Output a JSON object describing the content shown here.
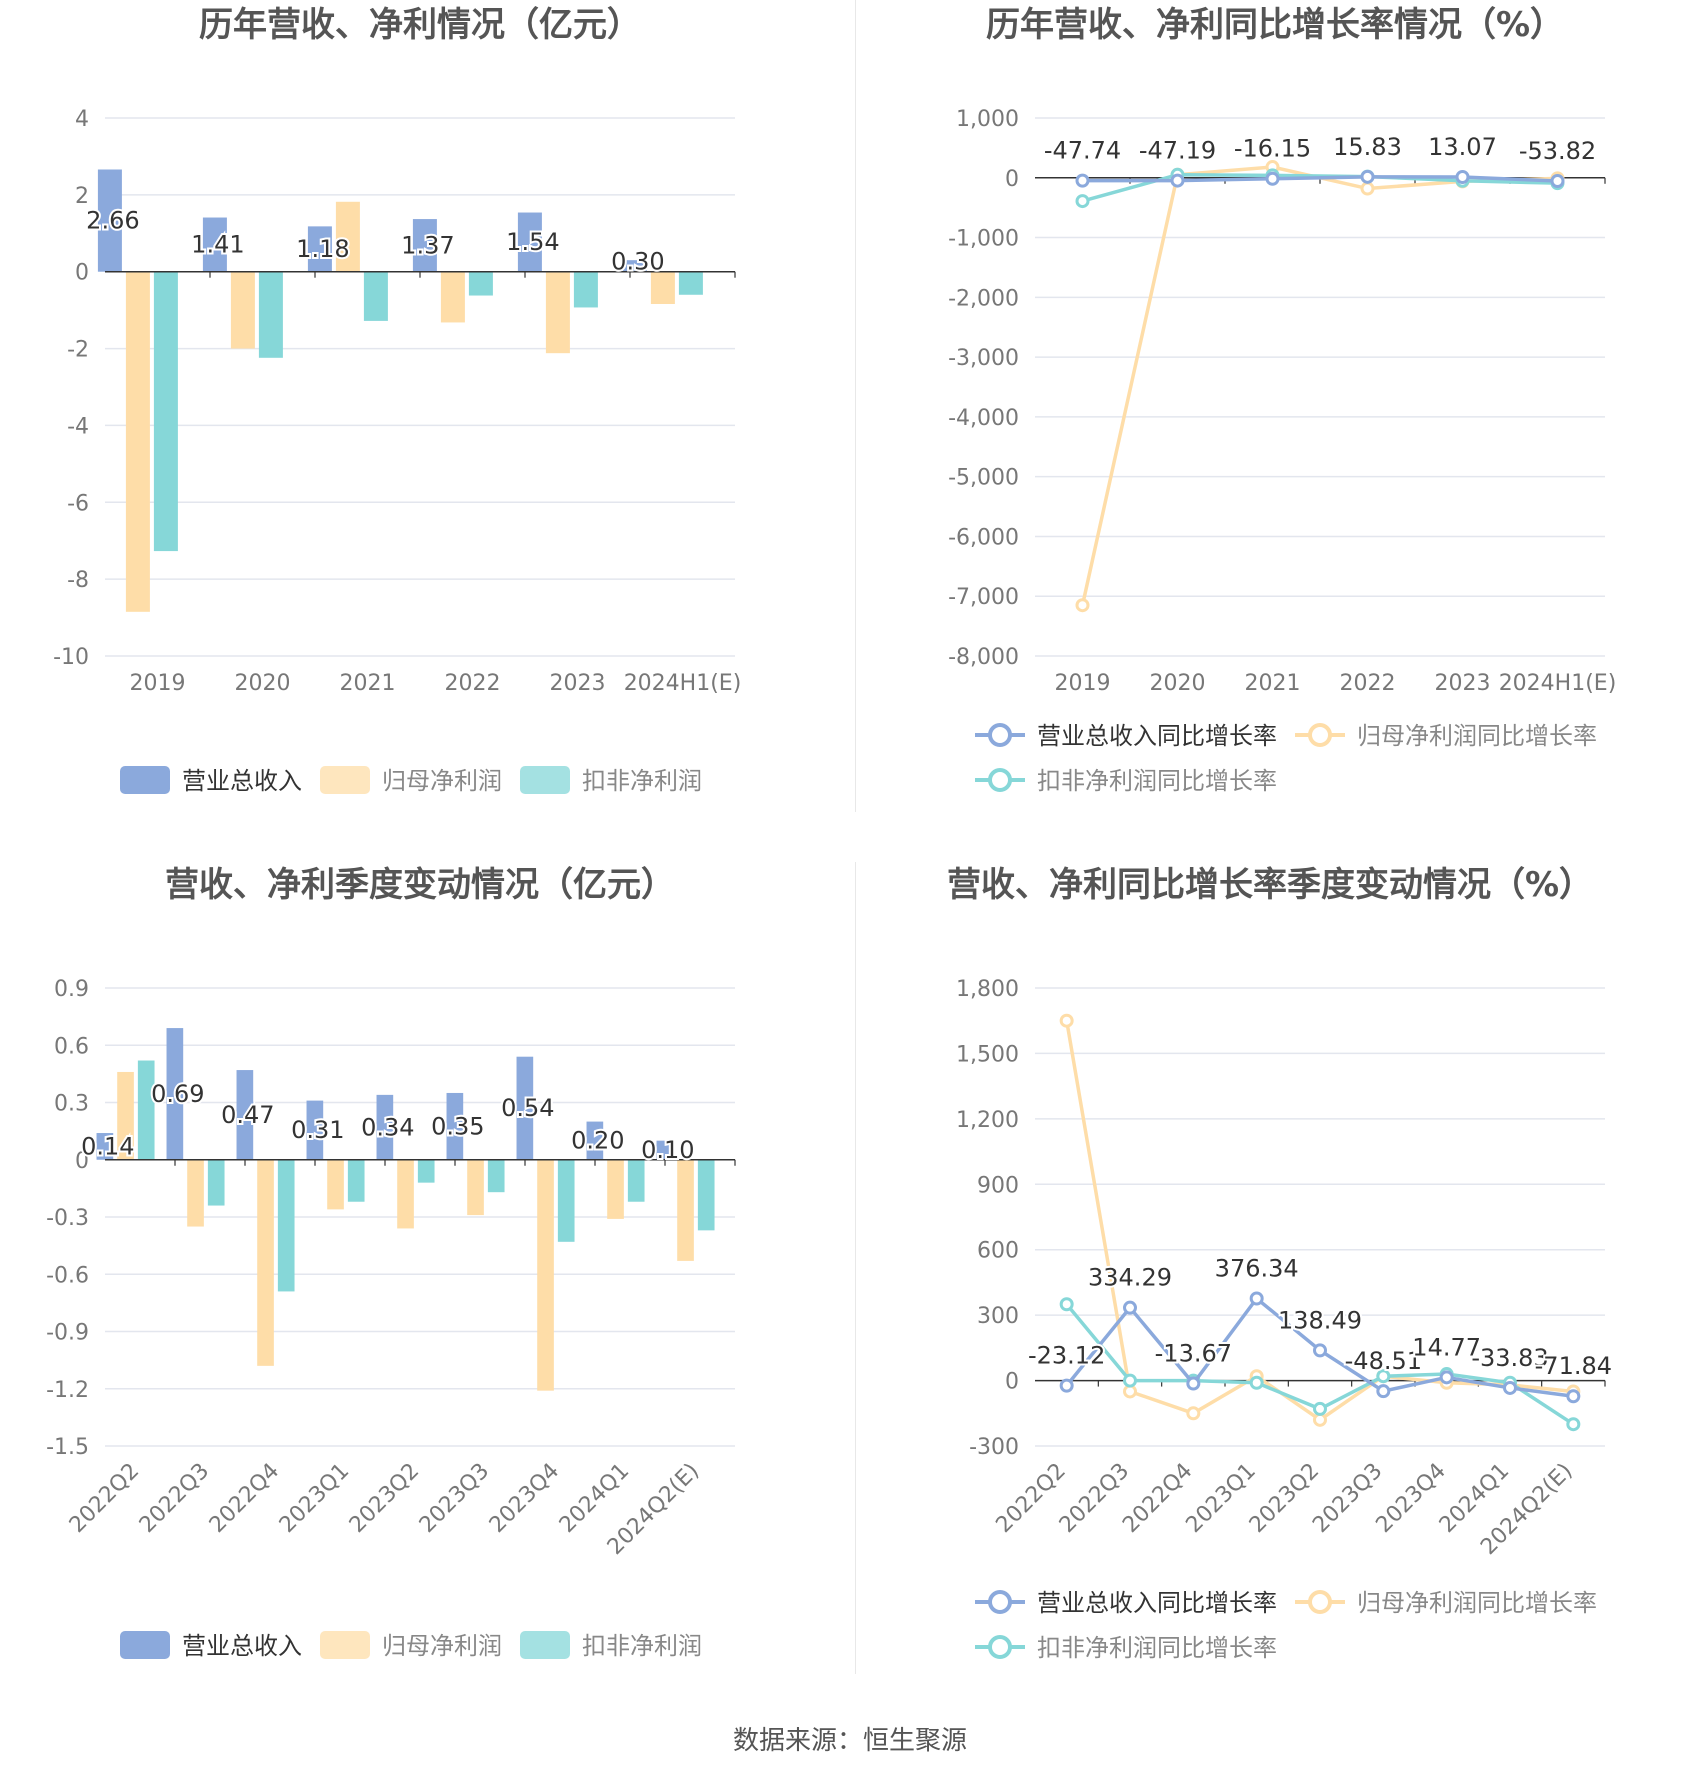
{
  "source_text": "数据来源：恒生聚源",
  "colors": {
    "revenue": "#8ba9dc",
    "net_profit": "#fedda8",
    "deducted_profit": "#86d7d8",
    "grid": "#e3e6ee",
    "tick_text": "#777777",
    "title_text": "#555555",
    "value_text": "#333333"
  },
  "chart_data": [
    {
      "type": "bar",
      "title": "历年营收、净利情况（亿元）",
      "categories": [
        "2019",
        "2020",
        "2021",
        "2022",
        "2023",
        "2024H1(E)"
      ],
      "yticks": [
        "4",
        "2",
        "0",
        "-2",
        "-4",
        "-6",
        "-8",
        "-10"
      ],
      "ylim": [
        -10,
        4
      ],
      "series": [
        {
          "name": "营业总收入",
          "color": "#8ba9dc",
          "values": [
            2.66,
            1.41,
            1.18,
            1.37,
            1.54,
            0.3
          ]
        },
        {
          "name": "归母净利润",
          "color": "#fedda8",
          "values": [
            -8.85,
            -2.0,
            1.82,
            -1.32,
            -2.12,
            -0.84
          ]
        },
        {
          "name": "扣非净利润",
          "color": "#86d7d8",
          "values": [
            -7.27,
            -2.24,
            -1.28,
            -0.62,
            -0.93,
            -0.6
          ]
        }
      ],
      "data_labels": [
        "2.66",
        "1.41",
        "1.18",
        "1.37",
        "1.54",
        "0.30"
      ],
      "legend": "bottom",
      "grid": true
    },
    {
      "type": "line",
      "title": "历年营收、净利同比增长率情况（%）",
      "categories": [
        "2019",
        "2020",
        "2021",
        "2022",
        "2023",
        "2024H1(E)"
      ],
      "yticks": [
        "1,000",
        "0",
        "-1,000",
        "-2,000",
        "-3,000",
        "-4,000",
        "-5,000",
        "-6,000",
        "-7,000",
        "-8,000"
      ],
      "ylim": [
        -8000,
        1000
      ],
      "series": [
        {
          "name": "营业总收入同比增长率",
          "color": "#8ba9dc",
          "values": [
            -47.74,
            -47.19,
            -16.15,
            15.83,
            13.07,
            -53.82
          ]
        },
        {
          "name": "归母净利润同比增长率",
          "color": "#fedda8",
          "values": [
            -7150,
            50,
            180,
            -180,
            -60,
            -10
          ]
        },
        {
          "name": "扣非净利润同比增长率",
          "color": "#86d7d8",
          "values": [
            -390,
            50,
            40,
            20,
            -50,
            -90
          ]
        }
      ],
      "data_labels": [
        "-47.74",
        "-47.19",
        "-16.15",
        "15.83",
        "13.07",
        "-53.82"
      ],
      "legend": "bottom",
      "grid": true
    },
    {
      "type": "bar",
      "title": "营收、净利季度变动情况（亿元）",
      "categories": [
        "2022Q2",
        "2022Q3",
        "2022Q4",
        "2023Q1",
        "2023Q2",
        "2023Q3",
        "2023Q4",
        "2024Q1",
        "2024Q2(E)"
      ],
      "yticks": [
        "0.9",
        "0.6",
        "0.3",
        "0",
        "-0.3",
        "-0.6",
        "-0.9",
        "-1.2",
        "-1.5"
      ],
      "ylim": [
        -1.5,
        0.9
      ],
      "series": [
        {
          "name": "营业总收入",
          "color": "#8ba9dc",
          "values": [
            0.14,
            0.69,
            0.47,
            0.31,
            0.34,
            0.35,
            0.54,
            0.2,
            0.1
          ]
        },
        {
          "name": "归母净利润",
          "color": "#fedda8",
          "values": [
            0.46,
            -0.35,
            -1.08,
            -0.26,
            -0.36,
            -0.29,
            -1.21,
            -0.31,
            -0.53
          ]
        },
        {
          "name": "扣非净利润",
          "color": "#86d7d8",
          "values": [
            0.52,
            -0.24,
            -0.69,
            -0.22,
            -0.12,
            -0.17,
            -0.43,
            -0.22,
            -0.37
          ]
        }
      ],
      "data_labels": [
        "0.14",
        "0.69",
        "0.47",
        "0.31",
        "0.34",
        "0.35",
        "0.54",
        "0.20",
        "0.10"
      ],
      "legend": "bottom",
      "grid": true
    },
    {
      "type": "line",
      "title": "营收、净利同比增长率季度变动情况（%）",
      "categories": [
        "2022Q2",
        "2022Q3",
        "2022Q4",
        "2023Q1",
        "2023Q2",
        "2023Q3",
        "2023Q4",
        "2024Q1",
        "2024Q2(E)"
      ],
      "yticks": [
        "1,800",
        "1,500",
        "1,200",
        "900",
        "600",
        "300",
        "0",
        "-300"
      ],
      "ylim": [
        -300,
        1800
      ],
      "series": [
        {
          "name": "营业总收入同比增长率",
          "color": "#8ba9dc",
          "values": [
            -23.12,
            334.29,
            -13.67,
            376.34,
            138.49,
            -48.51,
            14.77,
            -33.83,
            -71.84
          ]
        },
        {
          "name": "归母净利润同比增长率",
          "color": "#fedda8",
          "values": [
            1650,
            -50,
            -150,
            20,
            -180,
            20,
            -10,
            -20,
            -50
          ]
        },
        {
          "name": "扣非净利润同比增长率",
          "color": "#86d7d8",
          "values": [
            350,
            0,
            0,
            -10,
            -130,
            20,
            30,
            -10,
            -200
          ]
        }
      ],
      "data_labels": [
        "-23.12",
        "334.29",
        "-13.67",
        "376.34",
        "138.49",
        "-48.51",
        "14.77",
        "-33.83",
        "-71.84"
      ],
      "legend": "bottom",
      "grid": true
    }
  ]
}
